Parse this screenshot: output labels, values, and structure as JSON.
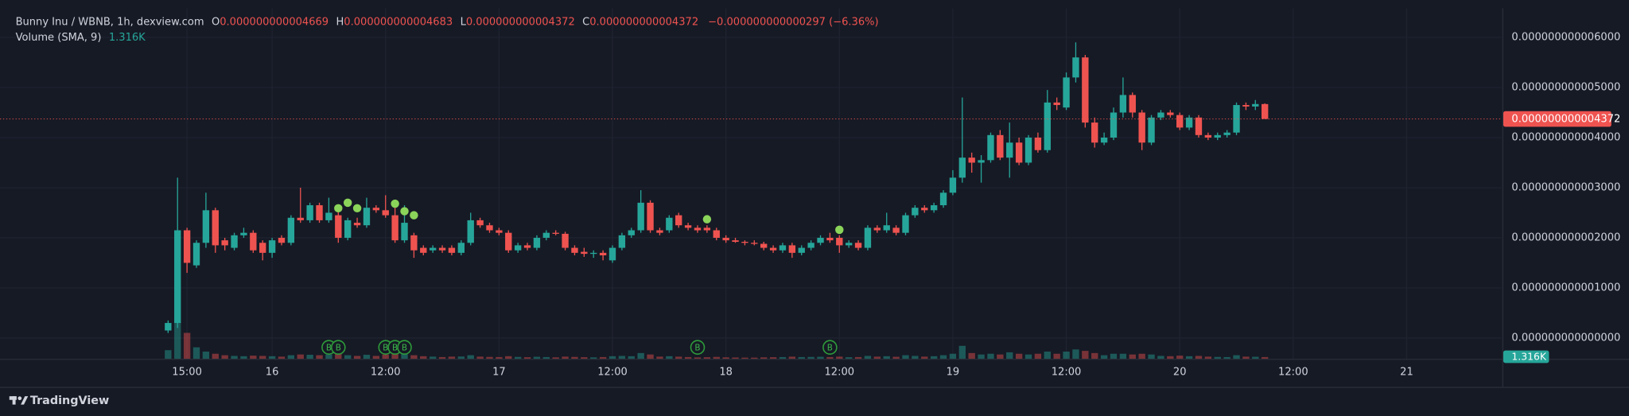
{
  "chart_data": {
    "type": "candlestick",
    "legend": {
      "symbol": "Bunny Inu / WBNB, 1h, dexview.com",
      "ohlc_names": [
        "O",
        "H",
        "L",
        "C"
      ],
      "open": {
        "value": 4.669e-12,
        "label": "0.000000000004669"
      },
      "high": {
        "value": 4.683e-12,
        "label": "0.000000000004683"
      },
      "low": {
        "value": 4.372e-12,
        "label": "0.000000000004372"
      },
      "close": {
        "value": 4.372e-12,
        "label": "0.000000000004372"
      },
      "change": {
        "value": -2.97e-13,
        "label": "−0.000000000000297"
      },
      "change_pct": {
        "value": -6.36,
        "label": "(−6.36%)"
      }
    },
    "volume_title": "Volume (SMA, 9)",
    "volume_sma": {
      "value": 1316,
      "label": "1.316K"
    },
    "last_price": {
      "value": 4.372e-12,
      "label": "0.000000000004372"
    },
    "up_color": "#26a69a",
    "down_color": "#ef5350",
    "grid": true,
    "xlim": [
      -4.78,
      154
    ],
    "ylim": [
      -4.15e-13,
      6.58e-12
    ],
    "xticks": [
      {
        "value": 15,
        "label": "15:00"
      },
      {
        "value": 24,
        "label": "16"
      },
      {
        "value": 36,
        "label": "12:00"
      },
      {
        "value": 48,
        "label": "17"
      },
      {
        "value": 60,
        "label": "12:00"
      },
      {
        "value": 72,
        "label": "18"
      },
      {
        "value": 84,
        "label": "12:00"
      },
      {
        "value": 96,
        "label": "19"
      },
      {
        "value": 108,
        "label": "12:00"
      },
      {
        "value": 120,
        "label": "20"
      },
      {
        "value": 132,
        "label": "12:00"
      },
      {
        "value": 144,
        "label": "21"
      }
    ],
    "yticks": [
      {
        "value": 0,
        "label": "0.000000000000000"
      },
      {
        "value": 1e-12,
        "label": "0.000000000001000"
      },
      {
        "value": 2e-12,
        "label": "0.000000000002000"
      },
      {
        "value": 3e-12,
        "label": "0.000000000003000"
      },
      {
        "value": 4e-12,
        "label": "0.000000000004000"
      },
      {
        "value": 5e-12,
        "label": "0.000000000005000"
      },
      {
        "value": 6e-12,
        "label": "0.000000000006000"
      }
    ],
    "x": [
      13,
      14,
      15,
      16,
      17,
      18,
      19,
      20,
      21,
      22,
      23,
      24,
      25,
      26,
      27,
      28,
      29,
      30,
      31,
      32,
      33,
      34,
      35,
      36,
      37,
      38,
      39,
      40,
      41,
      42,
      43,
      44,
      45,
      46,
      47,
      48,
      49,
      50,
      51,
      52,
      53,
      54,
      55,
      56,
      57,
      58,
      59,
      60,
      61,
      62,
      63,
      64,
      65,
      66,
      67,
      68,
      69,
      70,
      71,
      72,
      73,
      74,
      75,
      76,
      77,
      78,
      79,
      80,
      81,
      82,
      83,
      84,
      85,
      86,
      87,
      88,
      89,
      90,
      91,
      92,
      93,
      94,
      95,
      96,
      97,
      98,
      99,
      100,
      101,
      102,
      103,
      104,
      105,
      106,
      107,
      108,
      109,
      110,
      111,
      112,
      113,
      114,
      115,
      116,
      117,
      118,
      119,
      120,
      121,
      122,
      123,
      124,
      125,
      126,
      127,
      128,
      129
    ],
    "open": [
      1.5e-13,
      3e-13,
      2.15e-12,
      1.45e-12,
      1.9e-12,
      2.55e-12,
      1.95e-12,
      1.8e-12,
      2.05e-12,
      2.1e-12,
      1.9e-12,
      1.7e-12,
      2e-12,
      1.9e-12,
      2.4e-12,
      2.35e-12,
      2.65e-12,
      2.35e-12,
      2.45e-12,
      2e-12,
      2.3e-12,
      2.25e-12,
      2.6e-12,
      2.55e-12,
      2.45e-12,
      1.95e-12,
      2.05e-12,
      1.8e-12,
      1.75e-12,
      1.8e-12,
      1.8e-12,
      1.7e-12,
      1.9e-12,
      2.35e-12,
      2.25e-12,
      2.15e-12,
      2.1e-12,
      1.75e-12,
      1.85e-12,
      1.8e-12,
      2e-12,
      2.1e-12,
      2.08e-12,
      1.8e-12,
      1.72e-12,
      1.68e-12,
      1.7e-12,
      1.55e-12,
      1.8e-12,
      2.05e-12,
      2.15e-12,
      2.7e-12,
      2.15e-12,
      2.15e-12,
      2.45e-12,
      2.25e-12,
      2.2e-12,
      2.2e-12,
      2.15e-12,
      2e-12,
      1.95e-12,
      1.92e-12,
      1.9e-12,
      1.88e-12,
      1.8e-12,
      1.75e-12,
      1.85e-12,
      1.7e-12,
      1.8e-12,
      1.9e-12,
      2e-12,
      2e-12,
      1.85e-12,
      1.9e-12,
      1.8e-12,
      2.2e-12,
      2.15e-12,
      2.2e-12,
      2.1e-12,
      2.45e-12,
      2.6e-12,
      2.55e-12,
      2.65e-12,
      2.9e-12,
      3.2e-12,
      3.6e-12,
      3.5e-12,
      3.55e-12,
      4.05e-12,
      3.6e-12,
      3.9e-12,
      3.5e-12,
      4e-12,
      3.75e-12,
      4.7e-12,
      4.6e-12,
      5.2e-12,
      5.6e-12,
      4.3e-12,
      3.9e-12,
      4e-12,
      4.5e-12,
      4.85e-12,
      4.5e-12,
      3.9e-12,
      4.4e-12,
      4.5e-12,
      4.45e-12,
      4.2e-12,
      4.4e-12,
      4.05e-12,
      4e-12,
      4.05e-12,
      4.1e-12,
      4.65e-12,
      4.62e-12,
      4.669e-12
    ],
    "high": [
      3.5e-13,
      3.2e-12,
      2.2e-12,
      1.95e-12,
      2.9e-12,
      2.6e-12,
      2e-12,
      2.1e-12,
      2.2e-12,
      2.15e-12,
      1.95e-12,
      2e-12,
      2.05e-12,
      2.45e-12,
      3e-12,
      2.7e-12,
      2.7e-12,
      2.8e-12,
      2.55e-12,
      2.4e-12,
      2.4e-12,
      2.8e-12,
      2.65e-12,
      2.85e-12,
      2.65e-12,
      2.65e-12,
      2.1e-12,
      1.85e-12,
      1.85e-12,
      1.85e-12,
      1.85e-12,
      1.95e-12,
      2.5e-12,
      2.4e-12,
      2.3e-12,
      2.2e-12,
      2.15e-12,
      1.9e-12,
      1.9e-12,
      2.05e-12,
      2.15e-12,
      2.15e-12,
      2.12e-12,
      1.85e-12,
      1.8e-12,
      1.75e-12,
      1.75e-12,
      1.85e-12,
      2.1e-12,
      2.2e-12,
      2.95e-12,
      2.75e-12,
      2.2e-12,
      2.45e-12,
      2.5e-12,
      2.3e-12,
      2.25e-12,
      2.25e-12,
      2.2e-12,
      2.05e-12,
      2e-12,
      1.95e-12,
      1.95e-12,
      1.92e-12,
      1.85e-12,
      1.9e-12,
      1.9e-12,
      1.85e-12,
      1.95e-12,
      2.05e-12,
      2.1e-12,
      2.05e-12,
      1.95e-12,
      1.95e-12,
      2.25e-12,
      2.25e-12,
      2.5e-12,
      2.25e-12,
      2.5e-12,
      2.65e-12,
      2.65e-12,
      2.7e-12,
      2.95e-12,
      3.35e-12,
      4.8e-12,
      3.7e-12,
      3.65e-12,
      4.1e-12,
      4.15e-12,
      4.3e-12,
      4e-12,
      4.05e-12,
      4.1e-12,
      4.95e-12,
      4.8e-12,
      5.3e-12,
      5.9e-12,
      5.65e-12,
      4.4e-12,
      4.1e-12,
      4.6e-12,
      5.2e-12,
      4.9e-12,
      4.55e-12,
      4.45e-12,
      4.55e-12,
      4.55e-12,
      4.5e-12,
      4.45e-12,
      4.45e-12,
      4.1e-12,
      4.1e-12,
      4.15e-12,
      4.7e-12,
      4.7e-12,
      4.75e-12,
      4.683e-12
    ],
    "low": [
      1e-13,
      2e-13,
      1.3e-12,
      1.4e-12,
      1.8e-12,
      1.7e-12,
      1.75e-12,
      1.75e-12,
      2e-12,
      1.7e-12,
      1.55e-12,
      1.6e-12,
      1.85e-12,
      1.85e-12,
      2.3e-12,
      2.3e-12,
      2.3e-12,
      2.3e-12,
      1.9e-12,
      1.95e-12,
      2.2e-12,
      2.2e-12,
      2.5e-12,
      2.4e-12,
      1.9e-12,
      1.9e-12,
      1.6e-12,
      1.65e-12,
      1.7e-12,
      1.7e-12,
      1.65e-12,
      1.65e-12,
      1.85e-12,
      2.2e-12,
      2.1e-12,
      2.05e-12,
      1.7e-12,
      1.7e-12,
      1.75e-12,
      1.75e-12,
      1.95e-12,
      2.05e-12,
      1.75e-12,
      1.65e-12,
      1.62e-12,
      1.6e-12,
      1.55e-12,
      1.5e-12,
      1.75e-12,
      2e-12,
      2.1e-12,
      2.1e-12,
      2.05e-12,
      2.1e-12,
      2.2e-12,
      2.15e-12,
      2.1e-12,
      2.1e-12,
      1.95e-12,
      1.9e-12,
      1.9e-12,
      1.85e-12,
      1.85e-12,
      1.75e-12,
      1.7e-12,
      1.7e-12,
      1.6e-12,
      1.65e-12,
      1.75e-12,
      1.85e-12,
      1.9e-12,
      1.7e-12,
      1.8e-12,
      1.75e-12,
      1.75e-12,
      2.1e-12,
      2.1e-12,
      2.05e-12,
      2.05e-12,
      2.4e-12,
      2.5e-12,
      2.5e-12,
      2.6e-12,
      2.85e-12,
      3.1e-12,
      3.3e-12,
      3.1e-12,
      3.5e-12,
      3.55e-12,
      3.2e-12,
      3.45e-12,
      3.45e-12,
      3.7e-12,
      3.7e-12,
      4.55e-12,
      4.55e-12,
      5.1e-12,
      4.2e-12,
      3.8e-12,
      3.85e-12,
      3.95e-12,
      4.4e-12,
      4.4e-12,
      3.75e-12,
      3.85e-12,
      4.35e-12,
      4.4e-12,
      4.15e-12,
      4.15e-12,
      4e-12,
      3.95e-12,
      3.95e-12,
      4e-12,
      4.05e-12,
      4.55e-12,
      4.55e-12,
      4.372e-12
    ],
    "close": [
      3e-13,
      2.15e-12,
      1.5e-12,
      1.9e-12,
      2.55e-12,
      1.85e-12,
      1.85e-12,
      2.05e-12,
      2.1e-12,
      1.75e-12,
      1.7e-12,
      1.95e-12,
      1.9e-12,
      2.4e-12,
      2.35e-12,
      2.65e-12,
      2.35e-12,
      2.5e-12,
      2e-12,
      2.35e-12,
      2.25e-12,
      2.6e-12,
      2.55e-12,
      2.45e-12,
      1.95e-12,
      2.3e-12,
      1.75e-12,
      1.7e-12,
      1.8e-12,
      1.75e-12,
      1.7e-12,
      1.9e-12,
      2.35e-12,
      2.25e-12,
      2.15e-12,
      2.1e-12,
      1.75e-12,
      1.85e-12,
      1.8e-12,
      2e-12,
      2.1e-12,
      2.08e-12,
      1.8e-12,
      1.7e-12,
      1.68e-12,
      1.7e-12,
      1.65e-12,
      1.8e-12,
      2.05e-12,
      2.15e-12,
      2.7e-12,
      2.15e-12,
      2.1e-12,
      2.4e-12,
      2.25e-12,
      2.2e-12,
      2.15e-12,
      2.15e-12,
      2e-12,
      1.95e-12,
      1.92e-12,
      1.9e-12,
      1.88e-12,
      1.8e-12,
      1.75e-12,
      1.85e-12,
      1.7e-12,
      1.8e-12,
      1.9e-12,
      2e-12,
      1.95e-12,
      1.85e-12,
      1.9e-12,
      1.8e-12,
      2.2e-12,
      2.15e-12,
      2.25e-12,
      2.1e-12,
      2.45e-12,
      2.6e-12,
      2.55e-12,
      2.65e-12,
      2.9e-12,
      3.2e-12,
      3.6e-12,
      3.5e-12,
      3.55e-12,
      4.05e-12,
      3.6e-12,
      3.9e-12,
      3.5e-12,
      4e-12,
      3.75e-12,
      4.7e-12,
      4.65e-12,
      5.2e-12,
      5.6e-12,
      4.3e-12,
      3.9e-12,
      4e-12,
      4.5e-12,
      4.85e-12,
      4.5e-12,
      3.9e-12,
      4.4e-12,
      4.5e-12,
      4.45e-12,
      4.2e-12,
      4.4e-12,
      4.05e-12,
      4e-12,
      4.05e-12,
      4.1e-12,
      4.65e-12,
      4.62e-12,
      4.67e-12,
      4.372e-12
    ],
    "volume": [
      6000,
      26000,
      18000,
      8000,
      5000,
      3500,
      2500,
      2000,
      1800,
      2200,
      2000,
      1800,
      1500,
      2500,
      3000,
      2800,
      2500,
      3000,
      3500,
      2500,
      2000,
      2800,
      2000,
      3000,
      3500,
      4000,
      2500,
      1800,
      1500,
      1200,
      1500,
      1600,
      2500,
      1500,
      1300,
      1200,
      1800,
      1300,
      1100,
      1400,
      1200,
      1000,
      1500,
      1300,
      1100,
      1000,
      1200,
      1800,
      2000,
      1800,
      4000,
      3000,
      1500,
      1800,
      1500,
      1200,
      1000,
      1100,
      1300,
      1000,
      900,
      800,
      800,
      1000,
      1100,
      1200,
      1500,
      1200,
      1300,
      1400,
      1200,
      1500,
      1100,
      1200,
      2000,
      1500,
      1800,
      1400,
      2500,
      2000,
      1500,
      1800,
      2500,
      3500,
      9000,
      4000,
      3000,
      3500,
      3000,
      4500,
      3500,
      3000,
      3500,
      5000,
      3500,
      5000,
      6500,
      5500,
      4000,
      2500,
      3500,
      3500,
      3000,
      3500,
      3000,
      2000,
      1800,
      2200,
      1800,
      2000,
      1500,
      1300,
      1200,
      2500,
      1500,
      1400,
      1200
    ],
    "buy_markers": {
      "label": "B",
      "x": [
        30,
        31,
        36,
        37,
        38,
        69,
        83
      ]
    },
    "trade_dots": {
      "x": [
        31,
        32,
        33,
        37,
        38,
        39,
        70,
        84
      ],
      "y": [
        2.59e-12,
        2.7e-12,
        2.59e-12,
        2.68e-12,
        2.53e-12,
        2.45e-12,
        2.37e-12,
        2.16e-12
      ]
    },
    "footer": "TradingView"
  }
}
